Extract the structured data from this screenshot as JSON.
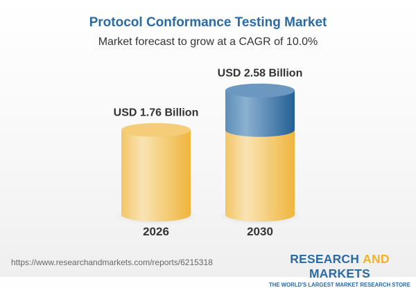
{
  "chart_data": {
    "type": "bar",
    "title": "Protocol Conformance Testing Market",
    "subtitle": "Market forecast to grow at a CAGR of 10.0%",
    "categories": [
      "2026",
      "2030"
    ],
    "values": [
      1.76,
      2.58
    ],
    "data_labels": [
      "USD 1.76 Billion",
      "USD 2.58 Billion"
    ],
    "unit": "USD Billion",
    "style": "3d-cylinder",
    "colors": {
      "base": "#f2c05a",
      "growth": "#3f78a8",
      "title": "#2a6aa5"
    }
  },
  "footer": {
    "url": "https://www.researchandmarkets.com/reports/6215318",
    "logo_part1": "RESEARCH ",
    "logo_part2": "AND",
    "logo_part3": " MARKETS",
    "tagline": "THE WORLD'S LARGEST MARKET RESEARCH STORE"
  }
}
